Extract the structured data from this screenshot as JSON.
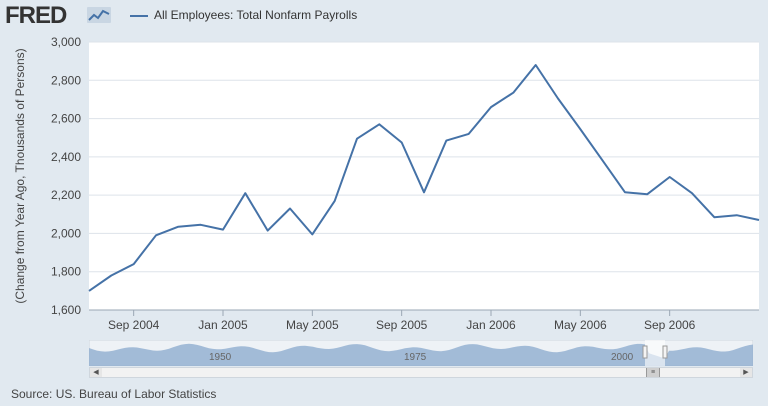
{
  "app": {
    "logo_text": "FRED",
    "logo_icon": "chart-line-icon",
    "source_text": "Source: US. Bureau of Labor Statistics"
  },
  "colors": {
    "series": "#4572a7",
    "background": "#e1e9f0",
    "plot_background": "#ffffff",
    "navigator_fill": "#8fadd0"
  },
  "navigator": {
    "labels": [
      "1950",
      "1975",
      "2000"
    ]
  },
  "chart_data": {
    "type": "line",
    "title": "",
    "xlabel": "",
    "ylabel": "(Change from Year Ago, Thousands of Persons)",
    "x_ticks": [
      "Sep 2004",
      "Jan 2005",
      "May 2005",
      "Sep 2005",
      "Jan 2006",
      "May 2006",
      "Sep 2006"
    ],
    "y_ticks": [
      "1,600",
      "1,800",
      "2,000",
      "2,200",
      "2,400",
      "2,600",
      "2,800",
      "3,000"
    ],
    "ylim": [
      1600,
      3000
    ],
    "grid": true,
    "legend_position": "top-left",
    "series": [
      {
        "name": "All Employees: Total Nonfarm Payrolls",
        "x": [
          "2004-07",
          "2004-08",
          "2004-09",
          "2004-10",
          "2004-11",
          "2004-12",
          "2005-01",
          "2005-02",
          "2005-03",
          "2005-04",
          "2005-05",
          "2005-06",
          "2005-07",
          "2005-08",
          "2005-09",
          "2005-10",
          "2005-11",
          "2005-12",
          "2006-01",
          "2006-02",
          "2006-03",
          "2006-04",
          "2006-05",
          "2006-06",
          "2006-07",
          "2006-08",
          "2006-09",
          "2006-10",
          "2006-11",
          "2006-12",
          "2007-01"
        ],
        "values": [
          1700,
          1780,
          1840,
          1990,
          2035,
          2045,
          2020,
          2210,
          2015,
          2130,
          1995,
          2170,
          2495,
          2570,
          2475,
          2215,
          2485,
          2520,
          2660,
          2735,
          2880,
          2705,
          2545,
          2380,
          2215,
          2205,
          2295,
          2210,
          2085,
          2095,
          2070
        ]
      }
    ]
  }
}
